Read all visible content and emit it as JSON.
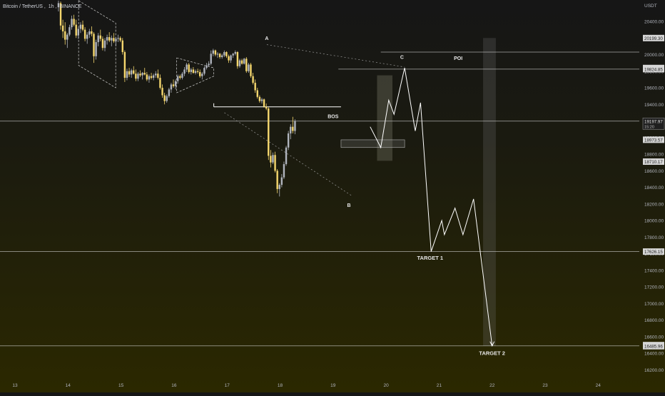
{
  "header": {
    "symbol": "Bitcoin / TetherUS",
    "interval": "1h",
    "exchange": "BINANCE",
    "separator": ", "
  },
  "colors": {
    "background_top": "#161616",
    "background_bottom": "#2b2800",
    "candle_up": "#b0b4bd",
    "candle_down": "#f5d76e",
    "line": "#ffffff",
    "zone": "#5a5a4a"
  },
  "chart_data": {
    "type": "candlestick",
    "currency_label": "USDT",
    "x_ticks": [
      "13",
      "14",
      "15",
      "16",
      "17",
      "18",
      "19",
      "20",
      "21",
      "22",
      "23",
      "24"
    ],
    "y_ticks": [
      20400,
      20200,
      20000,
      19800,
      19600,
      19400,
      19200,
      19000,
      18800,
      18600,
      18400,
      18200,
      18000,
      17800,
      17600,
      17400,
      17200,
      17000,
      16800,
      16600,
      16400,
      16200
    ],
    "ylim": [
      16100,
      20650
    ],
    "price_badges": [
      {
        "value": "20199.30",
        "price": 20199.3,
        "style": "light"
      },
      {
        "value": "19838.31",
        "price": 19838.31,
        "style": "light"
      },
      {
        "value": "19824.85",
        "price": 19824.85,
        "style": "light"
      },
      {
        "value": "19197.97",
        "price": 19197.97,
        "sub": "15:20",
        "style": "dark"
      },
      {
        "value": "18973.57",
        "price": 18973.57,
        "style": "light"
      },
      {
        "value": "18710.17",
        "price": 18710.17,
        "style": "light"
      },
      {
        "value": "17626.15",
        "price": 17626.15,
        "style": "light"
      },
      {
        "value": "16499.05",
        "price": 16499.05,
        "style": "light"
      },
      {
        "value": "16485.96",
        "price": 16485.96,
        "style": "light"
      }
    ],
    "horizontal_levels": [
      {
        "price": 20030
      },
      {
        "price": 19825
      },
      {
        "price": 19198
      },
      {
        "price": 17626
      },
      {
        "price": 16490
      }
    ],
    "candles_anchor": {
      "start_day": 13.82,
      "step_day": 0.0417
    },
    "candles": [
      [
        20570,
        20650,
        20520,
        20620
      ],
      [
        20620,
        20640,
        20300,
        20350
      ],
      [
        20350,
        20420,
        20200,
        20280
      ],
      [
        20280,
        20390,
        20120,
        20180
      ],
      [
        20180,
        20260,
        20080,
        20240
      ],
      [
        20240,
        20360,
        20220,
        20330
      ],
      [
        20330,
        20470,
        20300,
        20430
      ],
      [
        20430,
        20480,
        20340,
        20360
      ],
      [
        20360,
        20420,
        20200,
        20230
      ],
      [
        20230,
        20330,
        20190,
        20310
      ],
      [
        20310,
        20390,
        20260,
        20360
      ],
      [
        20360,
        20410,
        20280,
        20300
      ],
      [
        20300,
        20330,
        20160,
        20190
      ],
      [
        20190,
        20270,
        20130,
        20240
      ],
      [
        20240,
        20310,
        20200,
        20280
      ],
      [
        20280,
        20340,
        20220,
        20250
      ],
      [
        20250,
        20270,
        19900,
        19980
      ],
      [
        19980,
        20180,
        19940,
        20150
      ],
      [
        20150,
        20260,
        20100,
        20230
      ],
      [
        20230,
        20300,
        20160,
        20190
      ],
      [
        20190,
        20220,
        20050,
        20080
      ],
      [
        20080,
        20200,
        20040,
        20170
      ],
      [
        20170,
        20240,
        20120,
        20210
      ],
      [
        20210,
        20270,
        20150,
        20170
      ],
      [
        20170,
        20230,
        20100,
        20200
      ],
      [
        20200,
        20260,
        20140,
        20160
      ],
      [
        20160,
        20210,
        20100,
        20190
      ],
      [
        20190,
        20240,
        20150,
        20200
      ],
      [
        20200,
        20220,
        20150,
        20170
      ],
      [
        20170,
        20200,
        20000,
        20030
      ],
      [
        20030,
        20050,
        19670,
        19720
      ],
      [
        19720,
        19830,
        19690,
        19800
      ],
      [
        19800,
        19840,
        19730,
        19760
      ],
      [
        19760,
        19830,
        19720,
        19810
      ],
      [
        19810,
        19860,
        19760,
        19770
      ],
      [
        19770,
        19820,
        19680,
        19710
      ],
      [
        19710,
        19790,
        19680,
        19770
      ],
      [
        19770,
        19810,
        19730,
        19750
      ],
      [
        19750,
        19790,
        19700,
        19780
      ],
      [
        19780,
        19840,
        19750,
        19760
      ],
      [
        19760,
        19790,
        19680,
        19700
      ],
      [
        19700,
        19760,
        19660,
        19740
      ],
      [
        19740,
        19780,
        19700,
        19720
      ],
      [
        19720,
        19770,
        19690,
        19750
      ],
      [
        19750,
        19800,
        19720,
        19770
      ],
      [
        19770,
        19820,
        19700,
        19720
      ],
      [
        19720,
        19760,
        19580,
        19600
      ],
      [
        19600,
        19640,
        19480,
        19510
      ],
      [
        19510,
        19540,
        19400,
        19440
      ],
      [
        19440,
        19520,
        19420,
        19500
      ],
      [
        19500,
        19600,
        19480,
        19580
      ],
      [
        19580,
        19660,
        19540,
        19640
      ],
      [
        19640,
        19700,
        19600,
        19620
      ],
      [
        19620,
        19700,
        19580,
        19680
      ],
      [
        19680,
        19760,
        19650,
        19740
      ],
      [
        19740,
        19760,
        19700,
        19720
      ],
      [
        19720,
        19790,
        19700,
        19770
      ],
      [
        19770,
        19850,
        19740,
        19820
      ],
      [
        19820,
        19900,
        19790,
        19880
      ],
      [
        19880,
        19900,
        19770,
        19790
      ],
      [
        19790,
        19840,
        19760,
        19820
      ],
      [
        19820,
        19850,
        19770,
        19780
      ],
      [
        19780,
        19820,
        19760,
        19800
      ],
      [
        19800,
        19830,
        19770,
        19790
      ],
      [
        19790,
        19820,
        19720,
        19740
      ],
      [
        19740,
        19790,
        19700,
        19770
      ],
      [
        19770,
        19860,
        19750,
        19840
      ],
      [
        19840,
        19900,
        19820,
        19870
      ],
      [
        19870,
        19920,
        19850,
        19890
      ],
      [
        19890,
        20050,
        19870,
        20010
      ],
      [
        20010,
        20070,
        19980,
        20050
      ],
      [
        20050,
        20060,
        19980,
        20000
      ],
      [
        20000,
        20030,
        19960,
        20010
      ],
      [
        20010,
        20020,
        19950,
        19970
      ],
      [
        19970,
        20010,
        19950,
        19990
      ],
      [
        19990,
        20050,
        19970,
        20030
      ],
      [
        20030,
        20040,
        19960,
        19980
      ],
      [
        19980,
        20000,
        19900,
        19930
      ],
      [
        19930,
        20000,
        19900,
        19990
      ],
      [
        19990,
        20020,
        19960,
        20010
      ],
      [
        20010,
        20050,
        19990,
        20030
      ],
      [
        20030,
        20040,
        19830,
        19860
      ],
      [
        19860,
        19950,
        19840,
        19930
      ],
      [
        19930,
        19950,
        19880,
        19890
      ],
      [
        19890,
        19960,
        19880,
        19950
      ],
      [
        19950,
        19970,
        19780,
        19800
      ],
      [
        19800,
        19900,
        19780,
        19880
      ],
      [
        19880,
        19900,
        19720,
        19740
      ],
      [
        19740,
        19780,
        19640,
        19660
      ],
      [
        19660,
        19700,
        19540,
        19570
      ],
      [
        19570,
        19600,
        19470,
        19490
      ],
      [
        19490,
        19510,
        19420,
        19440
      ],
      [
        19440,
        19480,
        19410,
        19460
      ],
      [
        19460,
        19470,
        19360,
        19370
      ],
      [
        19370,
        19410,
        19330,
        19350
      ],
      [
        19350,
        19370,
        18730,
        18780
      ],
      [
        18780,
        18850,
        18640,
        18700
      ],
      [
        18700,
        18820,
        18680,
        18790
      ],
      [
        18790,
        18830,
        18580,
        18600
      ],
      [
        18600,
        18620,
        18330,
        18380
      ],
      [
        18380,
        18450,
        18290,
        18430
      ],
      [
        18430,
        18560,
        18400,
        18520
      ],
      [
        18520,
        18710,
        18500,
        18680
      ],
      [
        18680,
        18900,
        18660,
        18880
      ],
      [
        18880,
        19080,
        18850,
        19050
      ],
      [
        19050,
        19160,
        18980,
        19130
      ],
      [
        19130,
        19250,
        19050,
        19080
      ],
      [
        19080,
        19220,
        19040,
        19198
      ]
    ],
    "zones": [
      {
        "from_day": 19.83,
        "to_day": 20.12,
        "hi": 19750,
        "lo": 18720,
        "shade": "solid"
      },
      {
        "from_day": 21.83,
        "to_day": 22.07,
        "hi": 20200,
        "lo": 16490,
        "shade": "light"
      },
      {
        "from_day": 19.15,
        "to_day": 20.35,
        "hi": 18973,
        "lo": 18880,
        "shade": "box"
      }
    ],
    "patterns": [
      {
        "type": "dashed-parallelogram",
        "points": [
          [
            14.2,
            20650
          ],
          [
            14.9,
            20380
          ],
          [
            14.9,
            19600
          ],
          [
            14.2,
            19870
          ]
        ]
      },
      {
        "type": "dashed-parallelogram",
        "points": [
          [
            16.05,
            19960
          ],
          [
            16.75,
            19840
          ],
          [
            16.75,
            19740
          ],
          [
            16.05,
            19540
          ]
        ]
      }
    ],
    "annotations": [
      {
        "label": "A",
        "day": 17.75,
        "price": 20175,
        "kind": "point"
      },
      {
        "label": "C",
        "day": 20.3,
        "price": 19950,
        "kind": "point"
      },
      {
        "label": "POI",
        "day": 21.36,
        "price": 19935,
        "kind": "point"
      },
      {
        "label": "BOS",
        "day": 19.0,
        "price": 19235,
        "kind": "point"
      },
      {
        "label": "B",
        "day": 19.3,
        "price": 18165,
        "kind": "point"
      },
      {
        "label": "TARGET 1",
        "day": 20.83,
        "price": 17530,
        "kind": "target"
      },
      {
        "label": "TARGET 2",
        "day": 22.0,
        "price": 16380,
        "kind": "target"
      }
    ],
    "bos_line": {
      "from_day": 16.75,
      "to_day": 19.15,
      "price": 19370
    },
    "dotted_lines": [
      [
        [
          17.75,
          20120
        ],
        [
          20.35,
          19850
        ]
      ],
      [
        [
          16.95,
          19300
        ],
        [
          19.35,
          18300
        ]
      ]
    ],
    "projection": [
      [
        19.7,
        19130
      ],
      [
        19.9,
        18880
      ],
      [
        20.05,
        19450
      ],
      [
        20.15,
        19280
      ],
      [
        20.35,
        19840
      ],
      [
        20.55,
        19080
      ],
      [
        20.65,
        19420
      ],
      [
        20.85,
        17626
      ],
      [
        21.05,
        18000
      ],
      [
        21.1,
        17830
      ],
      [
        21.3,
        18150
      ],
      [
        21.45,
        17830
      ],
      [
        21.65,
        18260
      ],
      [
        22.0,
        16490
      ]
    ]
  }
}
